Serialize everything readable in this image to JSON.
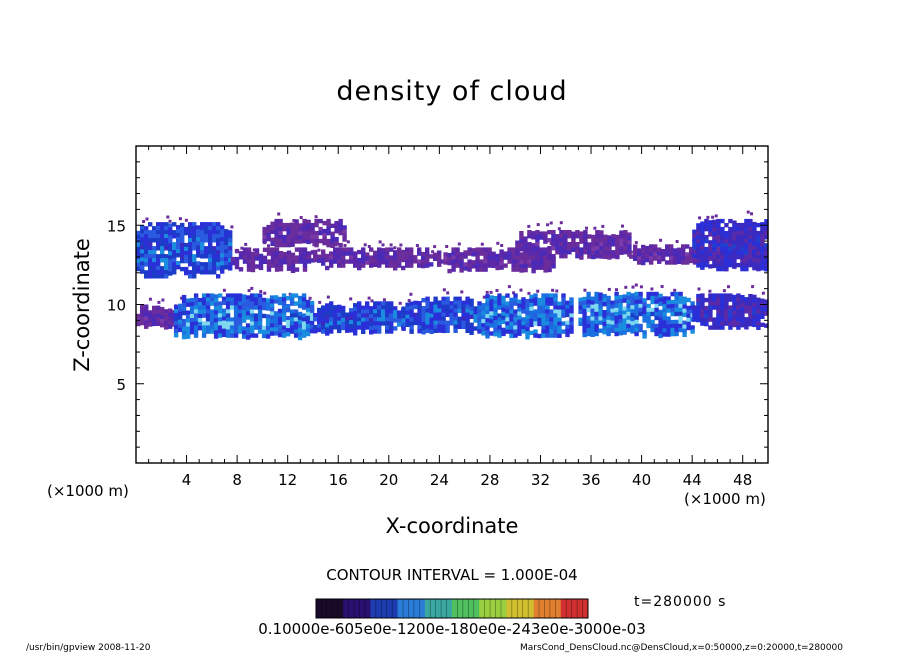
{
  "title": "density of cloud",
  "footer": {
    "left": "/usr/bin/gpview   2008-11-20",
    "right": "MarsCond_DensCloud.nc@DensCloud,x=0:50000,z=0:20000,t=280000"
  },
  "contour_interval": "CONTOUR INTERVAL = 1.000E-04",
  "time_label": "t=280000 s",
  "colorbar_ticks": "0.10000e-605e0e-1200e-180e0e-243e0e-3000e-03",
  "colors": {
    "low": "#6b2d9c",
    "mid": "#2a2fd8",
    "high": "#1a8ce0",
    "peak": "#7fd8f0"
  },
  "chart_data": {
    "type": "heatmap",
    "title": "density of cloud",
    "xlabel": "X-coordinate",
    "ylabel": "Z-coordinate",
    "x_unit": "(×1000 m)",
    "y_unit": "(×1000 m)",
    "xlim": [
      0,
      50
    ],
    "ylim": [
      0,
      20
    ],
    "x_ticks": [
      4,
      8,
      12,
      16,
      20,
      24,
      28,
      32,
      36,
      40,
      44,
      48
    ],
    "y_ticks": [
      5,
      10,
      15
    ],
    "colorbar": {
      "min": 0.0001,
      "max": 0.001,
      "interval": 0.0001,
      "palette": [
        "#1a0a2a",
        "#2a1070",
        "#1c3cb0",
        "#2a7cd8",
        "#3aa8a0",
        "#50c060",
        "#9ad040",
        "#d0c030",
        "#e08030",
        "#d03030"
      ]
    },
    "layers": [
      {
        "name": "upper-band",
        "z_range": [
          11.8,
          15.2
        ],
        "segments": [
          {
            "x": [
              0.0,
              7.5
            ],
            "z_bottom": 11.9,
            "z_top": 15.2,
            "level": 3
          },
          {
            "x": [
              7.5,
              14.0
            ],
            "z_bottom": 12.2,
            "z_top": 13.6,
            "level": 1
          },
          {
            "x": [
              10.0,
              16.5
            ],
            "z_bottom": 13.8,
            "z_top": 15.4,
            "level": 1
          },
          {
            "x": [
              14.0,
              24.0
            ],
            "z_bottom": 12.4,
            "z_top": 13.6,
            "level": 1
          },
          {
            "x": [
              24.0,
              33.0
            ],
            "z_bottom": 12.2,
            "z_top": 13.6,
            "level": 1
          },
          {
            "x": [
              30.0,
              39.0
            ],
            "z_bottom": 13.0,
            "z_top": 14.7,
            "level": 1
          },
          {
            "x": [
              39.0,
              46.0
            ],
            "z_bottom": 12.6,
            "z_top": 13.8,
            "level": 1
          },
          {
            "x": [
              44.0,
              50.0
            ],
            "z_bottom": 12.3,
            "z_top": 15.4,
            "level": 2
          }
        ]
      },
      {
        "name": "lower-band",
        "z_range": [
          8.0,
          10.9
        ],
        "segments": [
          {
            "x": [
              0.0,
              3.0
            ],
            "z_bottom": 8.6,
            "z_top": 10.0,
            "level": 1
          },
          {
            "x": [
              3.0,
              14.0
            ],
            "z_bottom": 8.0,
            "z_top": 10.7,
            "level": 4
          },
          {
            "x": [
              14.0,
              21.0
            ],
            "z_bottom": 8.3,
            "z_top": 10.2,
            "level": 3
          },
          {
            "x": [
              21.0,
              27.0
            ],
            "z_bottom": 8.3,
            "z_top": 10.5,
            "level": 3
          },
          {
            "x": [
              27.0,
              34.5
            ],
            "z_bottom": 8.0,
            "z_top": 10.7,
            "level": 4
          },
          {
            "x": [
              35.0,
              44.0
            ],
            "z_bottom": 8.1,
            "z_top": 10.8,
            "level": 4
          },
          {
            "x": [
              44.0,
              50.0
            ],
            "z_bottom": 8.6,
            "z_top": 10.7,
            "level": 2
          }
        ]
      }
    ]
  }
}
